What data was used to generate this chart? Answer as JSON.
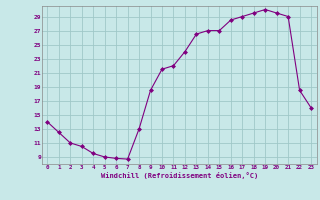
{
  "hours": [
    0,
    1,
    2,
    3,
    4,
    5,
    6,
    7,
    8,
    9,
    10,
    11,
    12,
    13,
    14,
    15,
    16,
    17,
    18,
    19,
    20,
    21,
    22,
    23
  ],
  "values": [
    14,
    12.5,
    11,
    10.5,
    9.5,
    9,
    8.8,
    8.7,
    13,
    18.5,
    21.5,
    22,
    24,
    26.5,
    27,
    27,
    28.5,
    29,
    29.5,
    30,
    29.5,
    29,
    18.5,
    16
  ],
  "line_color": "#800080",
  "marker_color": "#800080",
  "bg_color": "#c8e8e8",
  "grid_color": "#a0c8c8",
  "axis_label_color": "#800080",
  "tick_color": "#800080",
  "xlabel": "Windchill (Refroidissement éolien,°C)",
  "xlim": [
    -0.5,
    23.5
  ],
  "ylim": [
    8.0,
    30.5
  ],
  "yticks": [
    9,
    11,
    13,
    15,
    17,
    19,
    21,
    23,
    25,
    27,
    29
  ],
  "xticks": [
    0,
    1,
    2,
    3,
    4,
    5,
    6,
    7,
    8,
    9,
    10,
    11,
    12,
    13,
    14,
    15,
    16,
    17,
    18,
    19,
    20,
    21,
    22,
    23
  ]
}
